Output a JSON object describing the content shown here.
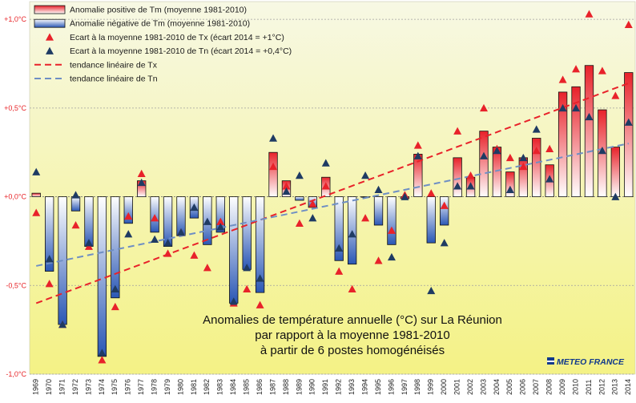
{
  "chart_data": {
    "type": "bar",
    "caption_lines": [
      "Anomalies de température annuelle (°C) sur La Réunion",
      "par rapport à la moyenne 1981-2010",
      "à partir de 6 postes homogénéisés"
    ],
    "logo_text": "METEO FRANCE",
    "ylim": [
      -1.0,
      1.1
    ],
    "yticks": [
      -1.0,
      -0.5,
      0.0,
      0.5,
      1.0
    ],
    "ytick_labels": [
      "-1,0°C",
      "-0,5°C",
      "+0,0°C",
      "+0,5°C",
      "+1,0°C"
    ],
    "grid": "horizontal dashed",
    "legend_position": "top-left",
    "categories": [
      "1969",
      "1970",
      "1971",
      "1972",
      "1973",
      "1974",
      "1975",
      "1976",
      "1977",
      "1978",
      "1979",
      "1980",
      "1981",
      "1982",
      "1983",
      "1984",
      "1985",
      "1986",
      "1987",
      "1988",
      "1989",
      "1990",
      "1991",
      "1992",
      "1993",
      "1994",
      "1995",
      "1996",
      "1997",
      "1998",
      "1999",
      "2000",
      "2001",
      "2002",
      "2003",
      "2004",
      "2005",
      "2006",
      "2007",
      "2008",
      "2009",
      "2010",
      "2011",
      "2012",
      "2013",
      "2014"
    ],
    "legend": [
      {
        "label": "Anomalie positive de Tm (moyenne 1981-2010)",
        "kind": "bar-positive"
      },
      {
        "label": "Anomalie négative de Tm (moyenne 1981-2010)",
        "kind": "bar-negative"
      },
      {
        "label": "Ecart à la moyenne 1981-2010 de Tx (écart 2014 = +1°C)",
        "kind": "marker-tx"
      },
      {
        "label": "Ecart à la moyenne 1981-2010 de Tn (écart 2014 = +0,4°C)",
        "kind": "marker-tn"
      },
      {
        "label": "tendance linéaire de Tx",
        "kind": "trend-tx"
      },
      {
        "label": "tendance linéaire de Tn",
        "kind": "trend-tn"
      }
    ],
    "series": [
      {
        "name": "Anomalie de Tm",
        "type": "bar",
        "values": [
          0.02,
          -0.42,
          -0.72,
          -0.08,
          -0.28,
          -0.9,
          -0.57,
          -0.15,
          0.09,
          -0.2,
          -0.28,
          -0.22,
          -0.12,
          -0.27,
          -0.2,
          -0.6,
          -0.41,
          -0.54,
          0.25,
          0.09,
          -0.02,
          -0.06,
          0.11,
          -0.36,
          -0.38,
          0.0,
          -0.16,
          -0.27,
          -0.01,
          0.24,
          -0.26,
          -0.16,
          0.22,
          0.11,
          0.37,
          0.28,
          0.14,
          0.22,
          0.33,
          0.18,
          0.59,
          0.62,
          0.74,
          0.49,
          0.28,
          0.7
        ]
      },
      {
        "name": "Ecart à la moyenne 1981-2010 de Tx",
        "type": "scatter",
        "values": [
          -0.09,
          -0.49,
          -0.72,
          -0.16,
          -0.28,
          -0.92,
          -0.62,
          -0.11,
          0.13,
          -0.12,
          -0.32,
          -0.2,
          -0.33,
          -0.4,
          -0.14,
          -0.6,
          -0.52,
          -0.61,
          0.17,
          0.06,
          -0.15,
          -0.04,
          0.06,
          -0.42,
          -0.52,
          -0.12,
          -0.36,
          -0.19,
          0.01,
          0.29,
          0.02,
          -0.05,
          0.37,
          0.12,
          0.5,
          0.27,
          0.22,
          0.17,
          0.26,
          0.27,
          0.66,
          0.72,
          1.03,
          0.71,
          0.57,
          0.97
        ]
      },
      {
        "name": "Ecart à la moyenne 1981-2010 de Tn",
        "type": "scatter",
        "values": [
          0.14,
          -0.35,
          -0.72,
          0.01,
          -0.26,
          -0.88,
          -0.52,
          -0.21,
          0.08,
          -0.24,
          -0.26,
          -0.2,
          -0.06,
          -0.14,
          -0.17,
          -0.59,
          -0.4,
          -0.46,
          0.33,
          0.03,
          0.12,
          -0.12,
          0.19,
          -0.29,
          -0.21,
          0.12,
          0.04,
          -0.34,
          0.0,
          0.23,
          -0.53,
          -0.26,
          0.06,
          0.06,
          0.23,
          0.26,
          0.04,
          0.22,
          0.38,
          0.1,
          0.5,
          0.5,
          0.45,
          0.26,
          0.0,
          0.42
        ]
      },
      {
        "name": "tendance linéaire de Tx",
        "type": "line",
        "x": [
          "1969",
          "2014"
        ],
        "values": [
          -0.6,
          0.64
        ]
      },
      {
        "name": "tendance linéaire de Tn",
        "type": "line",
        "x": [
          "1969",
          "2014"
        ],
        "values": [
          -0.39,
          0.3
        ]
      }
    ],
    "colors": {
      "positive_bar_top": "#e8222a",
      "positive_bar_bottom": "#ffffff",
      "negative_bar_top": "#ffffff",
      "negative_bar_bottom": "#2a57b5",
      "tx_marker": "#e8222a",
      "tn_marker": "#1f3b63",
      "tx_trend": "#e8222a",
      "tn_trend": "#6f8fc4",
      "background_top": "#f7f8e4",
      "background_bottom": "#f4f285",
      "logo_blue": "#123a8c"
    }
  }
}
